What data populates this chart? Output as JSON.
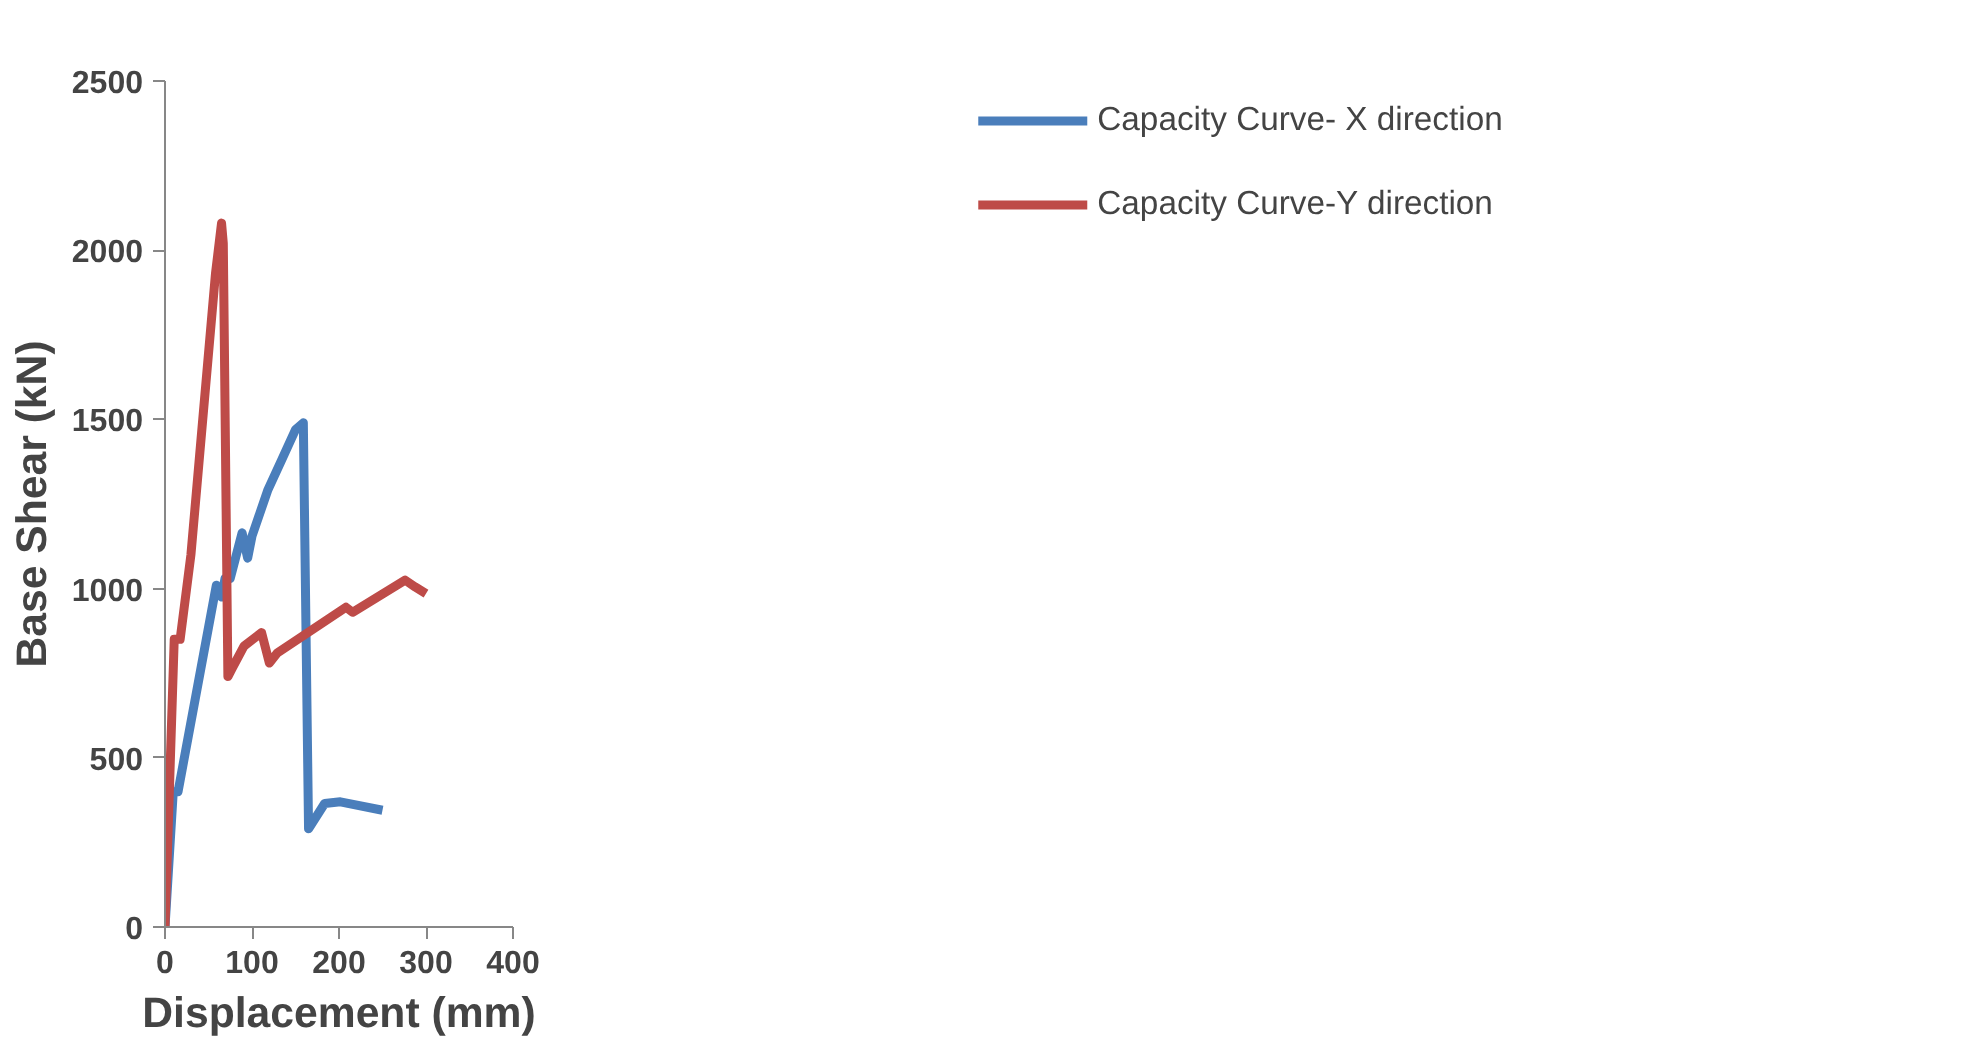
{
  "chart_data": {
    "type": "line",
    "xlabel": "Displacement (mm)",
    "ylabel": "Base Shear (kN)",
    "xlim": [
      0,
      400
    ],
    "xticks": [
      0,
      100,
      200,
      300,
      400
    ],
    "ylim": [
      0,
      2500
    ],
    "yticks": [
      0,
      500,
      1000,
      1500,
      2000,
      2500
    ],
    "grid": false,
    "legend": "top right",
    "marker": "none",
    "line_style": "solid",
    "series": [
      {
        "name": "Capacity Curve- X direction",
        "color": "#4a7ebb",
        "x": [
          0,
          9.5,
          15,
          59,
          65,
          69,
          75,
          88.6,
          95,
          100,
          118,
          134,
          150,
          159,
          165,
          183.5,
          201.6,
          250
        ],
        "values": [
          0,
          400,
          400,
          1010,
          975,
          1030,
          1030,
          1165,
          1090,
          1155,
          1290,
          1380,
          1470,
          1490,
          290,
          365,
          370,
          345
        ]
      },
      {
        "name": "Capacity Curve-Y direction",
        "color": "#be4b48",
        "x": [
          0,
          10.6,
          17.4,
          29.8,
          58,
          65,
          67,
          72.3,
          77.3,
          90.8,
          111,
          120,
          129,
          208,
          215.6,
          276,
          287.5,
          300
        ],
        "values": [
          0,
          850,
          850,
          1100,
          1930,
          2080,
          2020,
          740,
          765,
          830,
          870,
          780,
          810,
          945,
          930,
          1025,
          1005,
          985
        ]
      }
    ]
  }
}
